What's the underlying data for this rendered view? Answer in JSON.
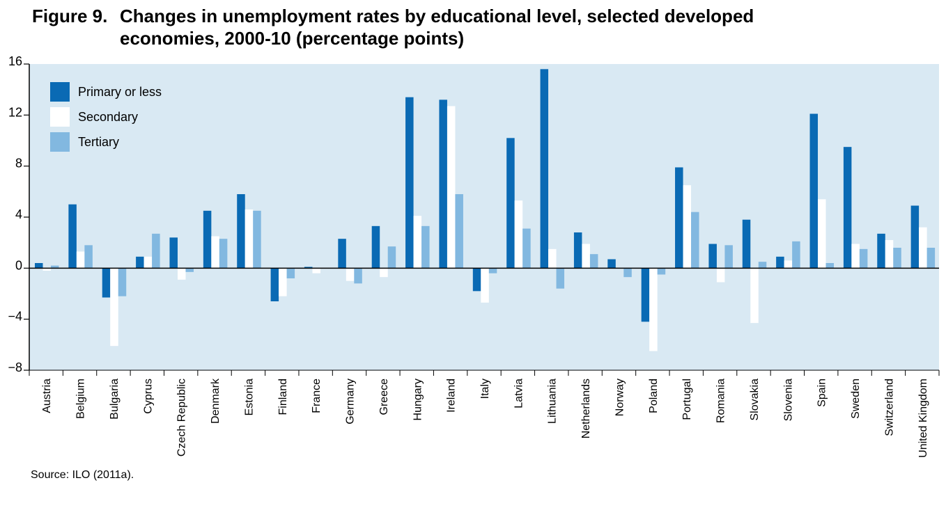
{
  "figure": {
    "label": "Figure 9.",
    "title_line1": "Changes in unemployment rates by educational level, selected developed",
    "title_line2": "economies, 2000-10 (percentage points)",
    "source": "Source: ILO (2011a)."
  },
  "chart_data": {
    "type": "bar",
    "title": "Changes in unemployment rates by educational level, selected developed economies, 2000-10 (percentage points)",
    "xlabel": "",
    "ylabel": "",
    "ylim": [
      -8,
      16
    ],
    "yticks": [
      16,
      12,
      8,
      4,
      0,
      -4,
      -8
    ],
    "ytick_labels": [
      "16",
      "12",
      "8",
      "4",
      "0",
      "−4",
      "−8"
    ],
    "grid": false,
    "legend_position": "top-left",
    "plot_background": "#d9e9f3",
    "categories": [
      "Austria",
      "Belgium",
      "Bulgaria",
      "Cyprus",
      "Czech Republic",
      "Denmark",
      "Estonia",
      "Finland",
      "France",
      "Germany",
      "Greece",
      "Hungary",
      "Ireland",
      "Italy",
      "Latvia",
      "Lithuania",
      "Netherlands",
      "Norway",
      "Poland",
      "Portugal",
      "Romania",
      "Slovakia",
      "Slovenia",
      "Spain",
      "Sweden",
      "Switzerland",
      "United Kingdom"
    ],
    "series": [
      {
        "name": "Primary or less",
        "color": "#0a6ab4",
        "values": [
          0.4,
          5.0,
          -2.3,
          0.9,
          2.4,
          4.5,
          5.8,
          -2.6,
          0.1,
          2.3,
          3.3,
          13.4,
          13.2,
          -1.8,
          10.2,
          15.6,
          2.8,
          0.7,
          -4.2,
          7.9,
          1.9,
          3.8,
          0.9,
          12.1,
          9.5,
          2.7,
          4.9
        ]
      },
      {
        "name": "Secondary",
        "color": "#ffffff",
        "values": [
          -0.2,
          1.3,
          -6.1,
          0.9,
          -0.9,
          2.5,
          4.6,
          -2.2,
          -0.4,
          -1.0,
          -0.7,
          4.1,
          12.7,
          -2.7,
          5.3,
          1.5,
          1.9,
          0.0,
          -6.5,
          6.5,
          -1.1,
          -4.3,
          0.6,
          5.4,
          1.9,
          2.2,
          3.2
        ]
      },
      {
        "name": "Tertiary",
        "color": "#82b8e0",
        "values": [
          0.2,
          1.8,
          -2.2,
          2.7,
          -0.3,
          2.3,
          4.5,
          -0.8,
          0.0,
          -1.2,
          1.7,
          3.3,
          5.8,
          -0.4,
          3.1,
          -1.6,
          1.1,
          -0.7,
          -0.5,
          4.4,
          1.8,
          0.5,
          2.1,
          0.4,
          1.5,
          1.6,
          1.6
        ]
      }
    ]
  }
}
